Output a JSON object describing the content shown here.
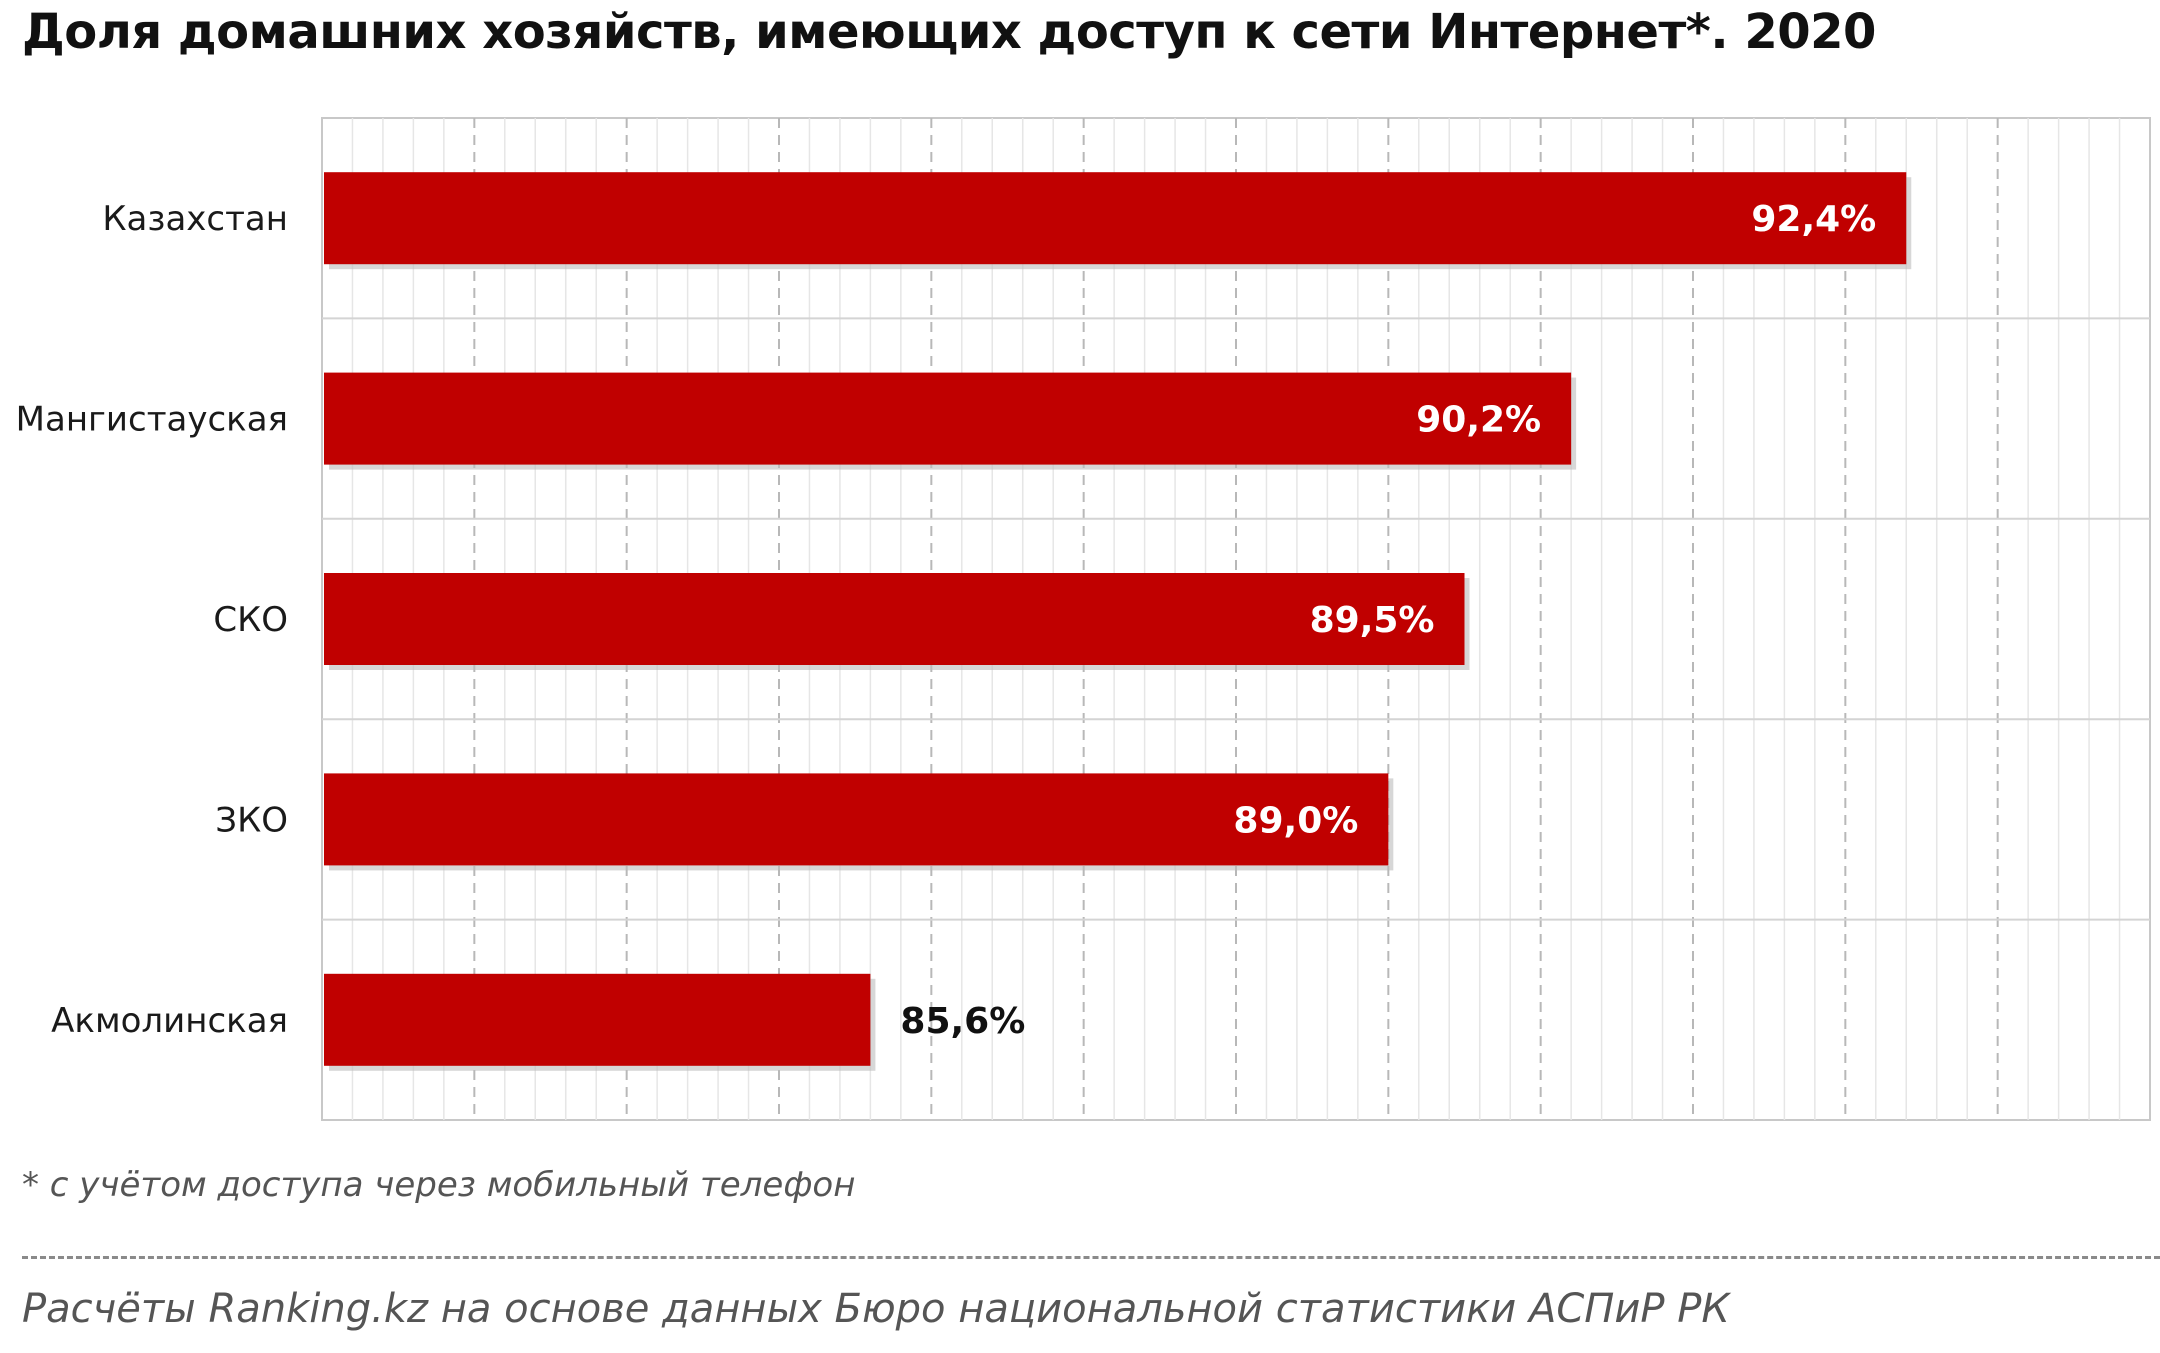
{
  "chart_data": {
    "type": "bar",
    "orientation": "horizontal",
    "title": "Доля домашних хозяйств, имеющих доступ к сети Интернет*. 2020",
    "categories": [
      "Казахстан",
      "Мангистауская",
      "СКО",
      "ЗКО",
      "Акмолинская"
    ],
    "values": [
      92.4,
      90.2,
      89.5,
      89.0,
      85.6
    ],
    "value_labels": [
      "92,4%",
      "90,2%",
      "89,5%",
      "89,0%",
      "85,6%"
    ],
    "xlim": [
      82,
      94
    ],
    "grid": true,
    "bar_color": "#c00000",
    "footnote": "* с учётом доступа через мобильный телефон",
    "source": "Расчёты Ranking.kz на основе данных  Бюро национальной  статистики АСПиР РК"
  }
}
